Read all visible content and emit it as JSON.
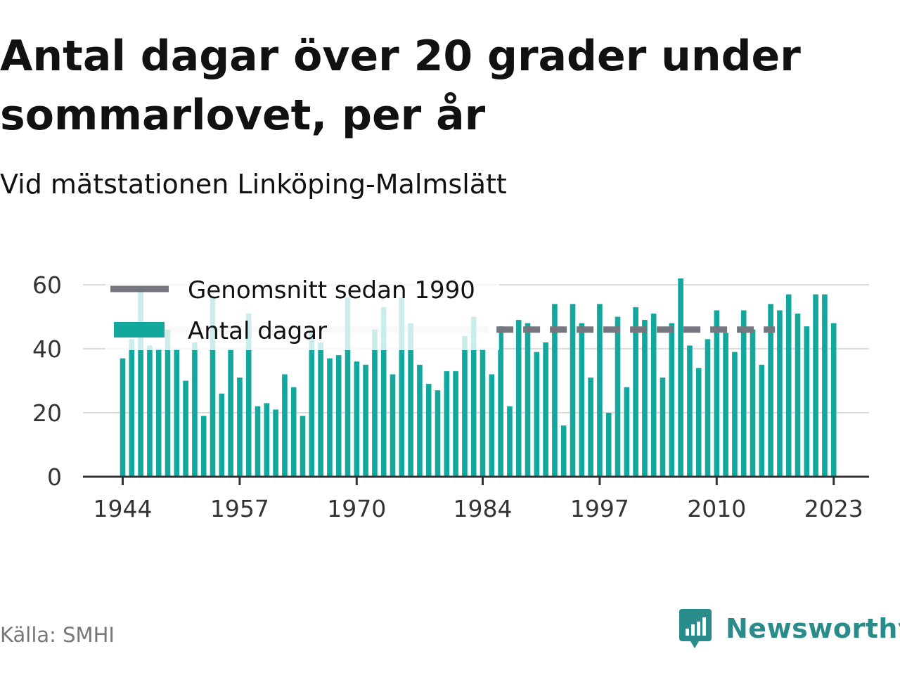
{
  "title": "Antal dagar över 20 grader under sommarlovet, per år",
  "subtitle": "Vid mätstationen Linköping-Malmslätt",
  "source": "Källa: SMHI",
  "brand": "Newsworthy",
  "colors": {
    "bar": "#13a89e",
    "average": "#76767f",
    "grid": "#dcdcdc",
    "axis": "#333333",
    "text": "#333333"
  },
  "chart_data": {
    "type": "bar",
    "title": "Antal dagar över 20 grader under sommarlovet, per år",
    "ylim": [
      0,
      60
    ],
    "yticks": [
      0,
      20,
      40,
      60
    ],
    "xticks": [
      1944,
      1957,
      1970,
      1984,
      1997,
      2010,
      2023
    ],
    "grid": true,
    "legend_position": "top-left",
    "categories": [
      1944,
      1945,
      1946,
      1947,
      1948,
      1949,
      1950,
      1951,
      1952,
      1953,
      1954,
      1955,
      1956,
      1957,
      1958,
      1959,
      1960,
      1961,
      1962,
      1963,
      1964,
      1965,
      1966,
      1967,
      1968,
      1969,
      1970,
      1971,
      1972,
      1973,
      1974,
      1975,
      1976,
      1977,
      1978,
      1979,
      1980,
      1981,
      1982,
      1983,
      1984,
      1985,
      1986,
      1987,
      1988,
      1989,
      1990,
      1991,
      1992,
      1993,
      1994,
      1995,
      1996,
      1997,
      1998,
      1999,
      2000,
      2001,
      2002,
      2003,
      2004,
      2005,
      2006,
      2007,
      2008,
      2009,
      2010,
      2011,
      2012,
      2013,
      2014,
      2015,
      2016,
      2017,
      2018,
      2019,
      2020,
      2021,
      2022,
      2023
    ],
    "series": [
      {
        "name": "Antal dagar",
        "type": "bar",
        "values": [
          37,
          43,
          58,
          41,
          40,
          46,
          40,
          30,
          42,
          19,
          56,
          26,
          40,
          31,
          51,
          22,
          23,
          21,
          32,
          28,
          19,
          46,
          42,
          37,
          38,
          56,
          36,
          35,
          46,
          53,
          32,
          56,
          48,
          35,
          29,
          27,
          33,
          33,
          44,
          50,
          40,
          32,
          47,
          22,
          49,
          48,
          39,
          42,
          54,
          16,
          54,
          48,
          31,
          54,
          20,
          50,
          28,
          53,
          49,
          51,
          31,
          48,
          62,
          41,
          34,
          43,
          52,
          45,
          39,
          52,
          46,
          35,
          54,
          52,
          57,
          51,
          47,
          57,
          57,
          48
        ]
      },
      {
        "name": "Genomsnitt sedan 1990",
        "type": "line",
        "x": [
          1986,
          2016
        ],
        "values": [
          46,
          46
        ]
      }
    ]
  }
}
